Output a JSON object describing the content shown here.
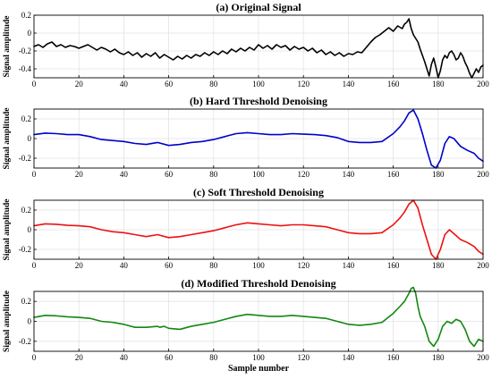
{
  "chart_data": [
    {
      "type": "line",
      "title": "(a) Original Signal",
      "ylabel": "Signal amplitude",
      "xlabel": "",
      "xlim": [
        0,
        200
      ],
      "ylim": [
        -0.5,
        0.2
      ],
      "xticks": [
        0,
        20,
        40,
        60,
        80,
        100,
        120,
        140,
        160,
        180,
        200
      ],
      "xtick_labels": [
        "0",
        "20",
        "40",
        "60",
        "80",
        "100",
        "120",
        "140",
        "160",
        "180",
        "200"
      ],
      "yticks": [
        -0.4,
        -0.2,
        0,
        0.2
      ],
      "ytick_labels": [
        "-0.4",
        "-0.2",
        "0",
        "0.2"
      ],
      "grid": true,
      "series": [
        {
          "color": "#000000",
          "x": [
            0,
            2,
            4,
            6,
            8,
            10,
            12,
            14,
            16,
            18,
            20,
            22,
            24,
            26,
            28,
            30,
            32,
            34,
            36,
            38,
            40,
            42,
            44,
            46,
            48,
            50,
            52,
            54,
            56,
            58,
            60,
            62,
            64,
            66,
            68,
            70,
            72,
            74,
            76,
            78,
            80,
            82,
            84,
            86,
            88,
            90,
            92,
            94,
            96,
            98,
            100,
            102,
            104,
            106,
            108,
            110,
            112,
            114,
            116,
            118,
            120,
            122,
            124,
            126,
            128,
            130,
            132,
            134,
            136,
            138,
            140,
            142,
            144,
            146,
            148,
            150,
            152,
            154,
            156,
            158,
            160,
            162,
            164,
            165,
            166,
            167,
            168,
            169,
            170,
            171,
            172,
            173,
            174,
            175,
            176,
            177,
            178,
            179,
            180,
            181,
            182,
            183,
            184,
            185,
            186,
            187,
            188,
            189,
            190,
            191,
            192,
            193,
            194,
            195,
            196,
            197,
            198,
            199,
            200
          ],
          "y": [
            -0.15,
            -0.13,
            -0.16,
            -0.12,
            -0.1,
            -0.15,
            -0.13,
            -0.16,
            -0.14,
            -0.15,
            -0.17,
            -0.15,
            -0.13,
            -0.16,
            -0.19,
            -0.16,
            -0.18,
            -0.21,
            -0.18,
            -0.22,
            -0.24,
            -0.21,
            -0.25,
            -0.22,
            -0.27,
            -0.23,
            -0.26,
            -0.22,
            -0.28,
            -0.24,
            -0.27,
            -0.3,
            -0.26,
            -0.29,
            -0.25,
            -0.28,
            -0.24,
            -0.26,
            -0.22,
            -0.25,
            -0.21,
            -0.24,
            -0.2,
            -0.23,
            -0.18,
            -0.21,
            -0.17,
            -0.2,
            -0.16,
            -0.19,
            -0.13,
            -0.17,
            -0.14,
            -0.18,
            -0.13,
            -0.16,
            -0.14,
            -0.19,
            -0.15,
            -0.18,
            -0.16,
            -0.2,
            -0.17,
            -0.22,
            -0.19,
            -0.24,
            -0.21,
            -0.25,
            -0.22,
            -0.26,
            -0.23,
            -0.24,
            -0.21,
            -0.22,
            -0.16,
            -0.1,
            -0.05,
            -0.02,
            0.02,
            0.06,
            0.02,
            0.08,
            0.05,
            0.1,
            0.12,
            0.16,
            0.05,
            -0.02,
            -0.06,
            -0.1,
            -0.18,
            -0.25,
            -0.32,
            -0.4,
            -0.48,
            -0.35,
            -0.28,
            -0.38,
            -0.5,
            -0.42,
            -0.3,
            -0.25,
            -0.28,
            -0.22,
            -0.2,
            -0.24,
            -0.3,
            -0.28,
            -0.22,
            -0.26,
            -0.33,
            -0.38,
            -0.45,
            -0.5,
            -0.45,
            -0.4,
            -0.44,
            -0.38,
            -0.36
          ]
        }
      ]
    },
    {
      "type": "line",
      "title": "(b) Hard Threshold Denoising",
      "ylabel": "Signal amplitude",
      "xlabel": "",
      "xlim": [
        0,
        200
      ],
      "ylim": [
        -0.3,
        0.3
      ],
      "xticks": [
        0,
        20,
        40,
        60,
        80,
        100,
        120,
        140,
        160,
        180,
        200
      ],
      "xtick_labels": [
        "0",
        "20",
        "40",
        "60",
        "80",
        "100",
        "120",
        "140",
        "160",
        "180",
        "200"
      ],
      "yticks": [
        -0.2,
        0,
        0.2
      ],
      "ytick_labels": [
        "-0.2",
        "0",
        "0.2"
      ],
      "grid": true,
      "series": [
        {
          "color": "#0000cc",
          "x": [
            0,
            5,
            10,
            15,
            20,
            25,
            30,
            35,
            40,
            45,
            50,
            55,
            60,
            65,
            70,
            75,
            80,
            85,
            90,
            95,
            100,
            105,
            110,
            115,
            120,
            125,
            130,
            135,
            140,
            145,
            150,
            155,
            160,
            163,
            165,
            167,
            169,
            171,
            173,
            175,
            177,
            179,
            181,
            183,
            185,
            187,
            190,
            193,
            196,
            198,
            200
          ],
          "y": [
            0.04,
            0.055,
            0.05,
            0.04,
            0.04,
            0.02,
            -0.01,
            -0.02,
            -0.03,
            -0.05,
            -0.06,
            -0.04,
            -0.07,
            -0.06,
            -0.04,
            -0.03,
            -0.01,
            0.02,
            0.05,
            0.06,
            0.05,
            0.04,
            0.04,
            0.05,
            0.045,
            0.04,
            0.03,
            0.01,
            -0.03,
            -0.04,
            -0.04,
            -0.03,
            0.05,
            0.12,
            0.18,
            0.26,
            0.29,
            0.2,
            0.05,
            -0.12,
            -0.27,
            -0.3,
            -0.22,
            -0.05,
            0.02,
            0.0,
            -0.08,
            -0.12,
            -0.15,
            -0.2,
            -0.23
          ]
        }
      ]
    },
    {
      "type": "line",
      "title": "(c) Soft Threshold Denoising",
      "ylabel": "Signal amplitude",
      "xlabel": "",
      "xlim": [
        0,
        200
      ],
      "ylim": [
        -0.3,
        0.3
      ],
      "xticks": [
        0,
        20,
        40,
        60,
        80,
        100,
        120,
        140,
        160,
        180,
        200
      ],
      "xtick_labels": [
        "0",
        "20",
        "40",
        "60",
        "80",
        "100",
        "120",
        "140",
        "160",
        "180",
        "200"
      ],
      "yticks": [
        -0.2,
        0,
        0.2
      ],
      "ytick_labels": [
        "-0.2",
        "0",
        "0.2"
      ],
      "grid": true,
      "series": [
        {
          "color": "#ee1111",
          "x": [
            0,
            5,
            10,
            15,
            20,
            25,
            30,
            35,
            40,
            45,
            50,
            55,
            60,
            65,
            70,
            75,
            80,
            85,
            90,
            95,
            100,
            105,
            110,
            115,
            120,
            125,
            130,
            135,
            140,
            145,
            150,
            155,
            160,
            163,
            165,
            167,
            169,
            171,
            173,
            175,
            177,
            179,
            181,
            183,
            185,
            187,
            190,
            193,
            196,
            198,
            200
          ],
          "y": [
            0.04,
            0.06,
            0.055,
            0.045,
            0.04,
            0.03,
            0.0,
            -0.02,
            -0.03,
            -0.05,
            -0.07,
            -0.05,
            -0.08,
            -0.07,
            -0.05,
            -0.03,
            -0.01,
            0.02,
            0.05,
            0.07,
            0.06,
            0.05,
            0.04,
            0.05,
            0.05,
            0.04,
            0.03,
            0.0,
            -0.03,
            -0.04,
            -0.04,
            -0.03,
            0.05,
            0.12,
            0.18,
            0.26,
            0.3,
            0.22,
            0.05,
            -0.1,
            -0.25,
            -0.3,
            -0.2,
            -0.05,
            0.0,
            -0.04,
            -0.1,
            -0.13,
            -0.17,
            -0.22,
            -0.25
          ]
        }
      ]
    },
    {
      "type": "line",
      "title": "(d) Modified Threshold Denoising",
      "ylabel": "Signal amplitude",
      "xlabel": "Sample number",
      "xlim": [
        0,
        200
      ],
      "ylim": [
        -0.3,
        0.3
      ],
      "xticks": [
        0,
        20,
        40,
        60,
        80,
        100,
        120,
        140,
        160,
        180,
        200
      ],
      "xtick_labels": [
        "0",
        "20",
        "40",
        "60",
        "80",
        "100",
        "120",
        "140",
        "160",
        "180",
        "200"
      ],
      "yticks": [
        -0.2,
        0,
        0.2
      ],
      "ytick_labels": [
        "-0.2",
        "0",
        "0.2"
      ],
      "grid": true,
      "series": [
        {
          "color": "#118811",
          "x": [
            0,
            5,
            10,
            15,
            20,
            25,
            30,
            35,
            40,
            45,
            50,
            55,
            56,
            58,
            60,
            65,
            70,
            75,
            80,
            85,
            90,
            95,
            100,
            105,
            110,
            115,
            120,
            125,
            130,
            135,
            140,
            145,
            150,
            155,
            160,
            163,
            165,
            167,
            168,
            169,
            170,
            171,
            172,
            174,
            176,
            178,
            180,
            182,
            184,
            186,
            188,
            190,
            192,
            194,
            196,
            198,
            200
          ],
          "y": [
            0.04,
            0.06,
            0.055,
            0.045,
            0.04,
            0.03,
            0.0,
            -0.01,
            -0.03,
            -0.06,
            -0.06,
            -0.05,
            -0.06,
            -0.05,
            -0.07,
            -0.08,
            -0.05,
            -0.03,
            -0.01,
            0.02,
            0.05,
            0.07,
            0.06,
            0.05,
            0.05,
            0.06,
            0.05,
            0.04,
            0.03,
            0.0,
            -0.03,
            -0.04,
            -0.03,
            -0.01,
            0.08,
            0.15,
            0.2,
            0.28,
            0.33,
            0.34,
            0.28,
            0.15,
            0.05,
            -0.05,
            -0.2,
            -0.25,
            -0.18,
            -0.05,
            0.0,
            -0.02,
            0.02,
            0.0,
            -0.08,
            -0.2,
            -0.25,
            -0.18,
            -0.2
          ]
        }
      ]
    }
  ]
}
